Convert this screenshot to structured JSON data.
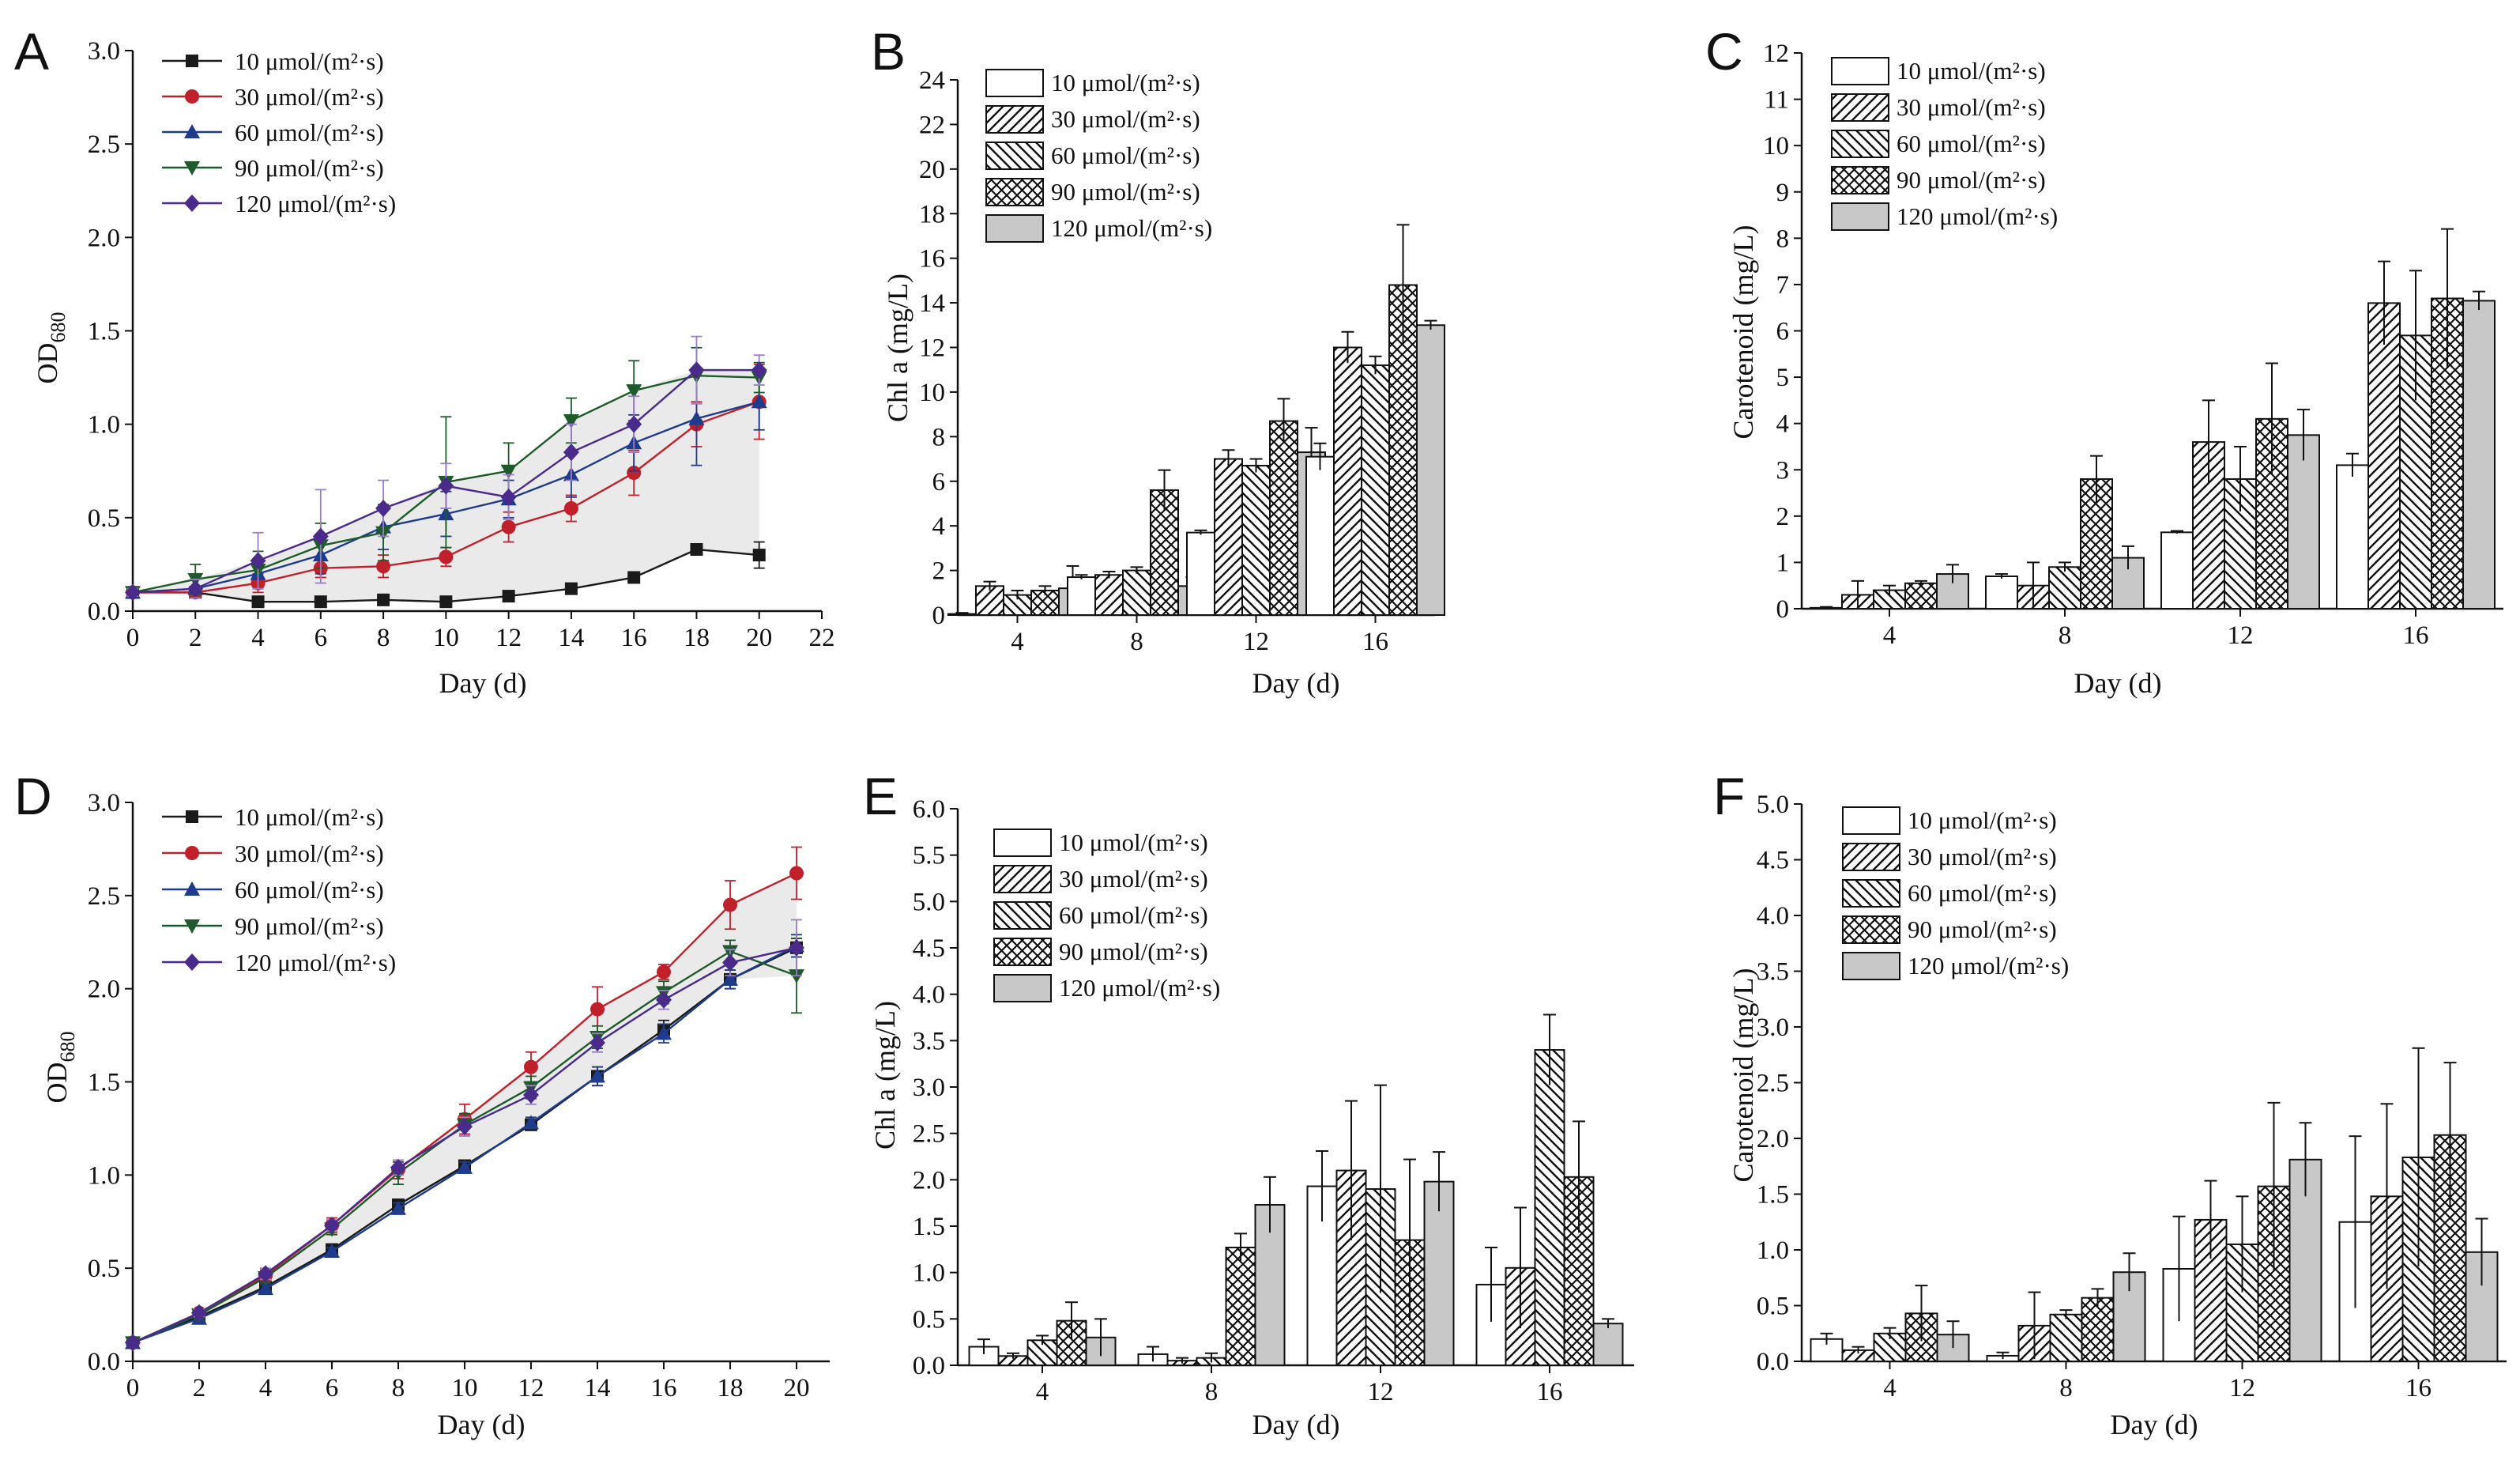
{
  "figure": {
    "legend_labels": [
      "10 μmol/(m²·s)",
      "30 μmol/(m²·s)",
      "60 μmol/(m²·s)",
      "90 μmol/(m²·s)",
      "120 μmol/(m²·s)"
    ],
    "line_colors": [
      "#1a1a1a",
      "#c0202a",
      "#1f3c8c",
      "#1e5a2a",
      "#4a2a8a"
    ],
    "error_bar_colors": [
      "#1a1a1a",
      "#c0202a",
      "#1f3c8c",
      "#1e5a2a",
      "#9a7cc8"
    ],
    "band_color": "#d8d8d8",
    "bar_fills": [
      "plain",
      "hatch-fwd",
      "hatch-back",
      "crosshatch",
      "gray"
    ]
  },
  "chart_data": [
    {
      "panel": "A",
      "type": "line",
      "xlabel": "Day (d)",
      "ylabel": "OD",
      "ylabel_sub": "680",
      "xlim": [
        0,
        22
      ],
      "ylim": [
        0,
        3.0
      ],
      "xticks": [
        "0",
        "2",
        "4",
        "6",
        "8",
        "10",
        "12",
        "14",
        "16",
        "18",
        "20",
        "22"
      ],
      "yticks": [
        "0.0",
        "0.5",
        "1.0",
        "1.5",
        "2.0",
        "2.5",
        "3.0"
      ],
      "x": [
        0,
        2,
        4,
        6,
        8,
        10,
        12,
        14,
        16,
        18,
        20
      ],
      "series": [
        {
          "name": "10 μmol/(m²·s)",
          "marker": "square",
          "values": [
            0.1,
            0.1,
            0.05,
            0.05,
            0.06,
            0.05,
            0.08,
            0.12,
            0.18,
            0.33,
            0.3
          ],
          "errors": [
            0.01,
            0.01,
            0.01,
            0.01,
            0.01,
            0.01,
            0.01,
            0.02,
            0.02,
            0.02,
            0.07
          ]
        },
        {
          "name": "30 μmol/(m²·s)",
          "marker": "circle",
          "values": [
            0.1,
            0.1,
            0.15,
            0.23,
            0.24,
            0.29,
            0.45,
            0.55,
            0.74,
            1.0,
            1.12
          ],
          "errors": [
            0.02,
            0.03,
            0.05,
            0.05,
            0.06,
            0.05,
            0.08,
            0.07,
            0.12,
            0.12,
            0.2
          ]
        },
        {
          "name": "60 μmol/(m²·s)",
          "marker": "triangle",
          "values": [
            0.1,
            0.12,
            0.2,
            0.3,
            0.45,
            0.52,
            0.6,
            0.73,
            0.9,
            1.03,
            1.12
          ],
          "errors": [
            0.02,
            0.05,
            0.08,
            0.1,
            0.12,
            0.12,
            0.1,
            0.12,
            0.15,
            0.25,
            0.15
          ]
        },
        {
          "name": "90 μmol/(m²·s)",
          "marker": "triangle-down",
          "values": [
            0.1,
            0.17,
            0.22,
            0.35,
            0.42,
            0.69,
            0.75,
            1.02,
            1.18,
            1.26,
            1.25
          ],
          "errors": [
            0.02,
            0.08,
            0.1,
            0.12,
            0.15,
            0.35,
            0.15,
            0.12,
            0.16,
            0.15,
            0.08
          ]
        },
        {
          "name": "120 μmol/(m²·s)",
          "marker": "diamond",
          "values": [
            0.1,
            0.12,
            0.27,
            0.4,
            0.55,
            0.67,
            0.61,
            0.85,
            1.0,
            1.29,
            1.29
          ],
          "errors": [
            0.02,
            0.05,
            0.15,
            0.25,
            0.15,
            0.12,
            0.12,
            0.15,
            0.15,
            0.18,
            0.08
          ]
        }
      ]
    },
    {
      "panel": "B",
      "type": "bar",
      "xlabel": "Day (d)",
      "ylabel": "Chl a (mg/L)",
      "ylim": [
        0,
        24
      ],
      "yticks": [
        "0",
        "2",
        "4",
        "6",
        "8",
        "10",
        "12",
        "14",
        "16",
        "18",
        "20",
        "22",
        "24"
      ],
      "categories": [
        "4",
        "8",
        "12",
        "16"
      ],
      "series": [
        {
          "name": "10 μmol/(m²·s)",
          "values": [
            0.05,
            1.7,
            3.7,
            7.1
          ],
          "errors": [
            0.05,
            0.1,
            0.1,
            0.6
          ]
        },
        {
          "name": "30 μmol/(m²·s)",
          "values": [
            1.3,
            1.8,
            7.0,
            12.0
          ],
          "errors": [
            0.2,
            0.15,
            0.4,
            0.7
          ]
        },
        {
          "name": "60 μmol/(m²·s)",
          "values": [
            0.9,
            2.0,
            6.7,
            11.2
          ],
          "errors": [
            0.2,
            0.15,
            0.3,
            0.4
          ]
        },
        {
          "name": "90 μmol/(m²·s)",
          "values": [
            1.1,
            5.6,
            8.7,
            14.8
          ],
          "errors": [
            0.2,
            0.9,
            1.0,
            2.7
          ]
        },
        {
          "name": "120 μmol/(m²·s)",
          "values": [
            1.2,
            1.3,
            7.3,
            13.0
          ],
          "errors": [
            1.0,
            0.4,
            1.1,
            0.2
          ]
        }
      ]
    },
    {
      "panel": "C",
      "type": "bar",
      "xlabel": "Day (d)",
      "ylabel": "Carotenoid  (mg/L)",
      "ylim": [
        0,
        12
      ],
      "yticks": [
        "0",
        "1",
        "2",
        "3",
        "4",
        "5",
        "6",
        "7",
        "8",
        "9",
        "10",
        "11",
        "12"
      ],
      "categories": [
        "4",
        "8",
        "12",
        "16"
      ],
      "series": [
        {
          "name": "10 μmol/(m²·s)",
          "values": [
            0.02,
            0.7,
            1.65,
            3.1
          ],
          "errors": [
            0.02,
            0.05,
            0.03,
            0.25
          ]
        },
        {
          "name": "30 μmol/(m²·s)",
          "values": [
            0.3,
            0.5,
            3.6,
            6.6
          ],
          "errors": [
            0.3,
            0.5,
            0.9,
            0.9
          ]
        },
        {
          "name": "60 μmol/(m²·s)",
          "values": [
            0.4,
            0.9,
            2.8,
            5.9
          ],
          "errors": [
            0.1,
            0.1,
            0.7,
            1.4
          ]
        },
        {
          "name": "90 μmol/(m²·s)",
          "values": [
            0.55,
            2.8,
            4.1,
            6.7
          ],
          "errors": [
            0.05,
            0.5,
            1.2,
            1.5
          ]
        },
        {
          "name": "120 μmol/(m²·s)",
          "values": [
            0.75,
            1.1,
            3.75,
            6.65
          ],
          "errors": [
            0.2,
            0.25,
            0.55,
            0.2
          ]
        }
      ]
    },
    {
      "panel": "D",
      "type": "line",
      "xlabel": "Day (d)",
      "ylabel": "OD",
      "ylabel_sub": "680",
      "xlim": [
        0,
        21
      ],
      "ylim": [
        0,
        3.0
      ],
      "xticks": [
        "0",
        "2",
        "4",
        "6",
        "8",
        "10",
        "12",
        "14",
        "16",
        "18",
        "20"
      ],
      "yticks": [
        "0.0",
        "0.5",
        "1.0",
        "1.5",
        "2.0",
        "2.5",
        "3.0"
      ],
      "x": [
        0,
        2,
        4,
        6,
        8,
        10,
        12,
        14,
        16,
        18,
        20
      ],
      "series": [
        {
          "name": "10 μmol/(m²·s)",
          "marker": "square",
          "values": [
            0.1,
            0.24,
            0.4,
            0.6,
            0.84,
            1.05,
            1.27,
            1.53,
            1.78,
            2.05,
            2.22
          ],
          "errors": [
            0.01,
            0.02,
            0.02,
            0.02,
            0.03,
            0.03,
            0.03,
            0.05,
            0.05,
            0.05,
            0.05
          ]
        },
        {
          "name": "30 μmol/(m²·s)",
          "marker": "circle",
          "values": [
            0.1,
            0.26,
            0.46,
            0.73,
            1.03,
            1.3,
            1.58,
            1.89,
            2.09,
            2.45,
            2.62
          ],
          "errors": [
            0.01,
            0.02,
            0.03,
            0.04,
            0.05,
            0.08,
            0.08,
            0.12,
            0.04,
            0.13,
            0.14
          ]
        },
        {
          "name": "60 μmol/(m²·s)",
          "marker": "triangle",
          "values": [
            0.1,
            0.23,
            0.39,
            0.59,
            0.82,
            1.04,
            1.28,
            1.53,
            1.76,
            2.05,
            2.23
          ],
          "errors": [
            0.01,
            0.02,
            0.02,
            0.02,
            0.03,
            0.03,
            0.03,
            0.05,
            0.05,
            0.05,
            0.06
          ]
        },
        {
          "name": "90 μmol/(m²·s)",
          "marker": "triangle-down",
          "values": [
            0.1,
            0.25,
            0.45,
            0.71,
            1.01,
            1.27,
            1.47,
            1.74,
            1.98,
            2.2,
            2.07
          ],
          "errors": [
            0.01,
            0.02,
            0.03,
            0.03,
            0.06,
            0.06,
            0.06,
            0.06,
            0.06,
            0.06,
            0.2
          ]
        },
        {
          "name": "120 μmol/(m²·s)",
          "marker": "diamond",
          "values": [
            0.1,
            0.26,
            0.47,
            0.73,
            1.04,
            1.26,
            1.43,
            1.71,
            1.94,
            2.14,
            2.22
          ],
          "errors": [
            0.01,
            0.02,
            0.03,
            0.03,
            0.04,
            0.05,
            0.05,
            0.05,
            0.05,
            0.07,
            0.15
          ]
        }
      ]
    },
    {
      "panel": "E",
      "type": "bar",
      "xlabel": "Day (d)",
      "ylabel": "Chl a  (mg/L)",
      "ylim": [
        0,
        6.0
      ],
      "yticks": [
        "0.0",
        "0.5",
        "1.0",
        "1.5",
        "2.0",
        "2.5",
        "3.0",
        "3.5",
        "4.0",
        "4.5",
        "5.0",
        "5.5",
        "6.0"
      ],
      "categories": [
        "4",
        "8",
        "12",
        "16"
      ],
      "series": [
        {
          "name": "10 μmol/(m²·s)",
          "values": [
            0.2,
            0.12,
            1.93,
            0.87
          ],
          "errors": [
            0.08,
            0.08,
            0.38,
            0.4
          ]
        },
        {
          "name": "30 μmol/(m²·s)",
          "values": [
            0.1,
            0.05,
            2.1,
            1.05
          ],
          "errors": [
            0.03,
            0.03,
            0.75,
            0.65
          ]
        },
        {
          "name": "60 μmol/(m²·s)",
          "values": [
            0.27,
            0.08,
            1.9,
            3.4
          ],
          "errors": [
            0.05,
            0.05,
            1.12,
            0.38
          ]
        },
        {
          "name": "90 μmol/(m²·s)",
          "values": [
            0.48,
            1.27,
            1.35,
            2.03
          ],
          "errors": [
            0.2,
            0.15,
            0.87,
            0.6
          ]
        },
        {
          "name": "120 μmol/(m²·s)",
          "values": [
            0.3,
            1.73,
            1.98,
            0.45
          ],
          "errors": [
            0.2,
            0.3,
            0.32,
            0.05
          ]
        }
      ]
    },
    {
      "panel": "F",
      "type": "bar",
      "xlabel": "Day (d)",
      "ylabel": "Carotenoid  (mg/L)",
      "ylim": [
        0,
        5.0
      ],
      "yticks": [
        "0.0",
        "0.5",
        "1.0",
        "1.5",
        "2.0",
        "2.5",
        "3.0",
        "3.5",
        "4.0",
        "4.5",
        "5.0"
      ],
      "categories": [
        "4",
        "8",
        "12",
        "16"
      ],
      "series": [
        {
          "name": "10 μmol/(m²·s)",
          "values": [
            0.2,
            0.05,
            0.83,
            1.25
          ],
          "errors": [
            0.05,
            0.03,
            0.47,
            0.77
          ]
        },
        {
          "name": "30 μmol/(m²·s)",
          "values": [
            0.1,
            0.32,
            1.27,
            1.48
          ],
          "errors": [
            0.03,
            0.3,
            0.35,
            0.83
          ]
        },
        {
          "name": "60 μmol/(m²·s)",
          "values": [
            0.25,
            0.42,
            1.05,
            1.83
          ],
          "errors": [
            0.05,
            0.04,
            0.43,
            0.98
          ]
        },
        {
          "name": "90 μmol/(m²·s)",
          "values": [
            0.43,
            0.57,
            1.57,
            2.03
          ],
          "errors": [
            0.25,
            0.08,
            0.75,
            0.65
          ]
        },
        {
          "name": "120 μmol/(m²·s)",
          "values": [
            0.24,
            0.8,
            1.81,
            0.98
          ],
          "errors": [
            0.12,
            0.17,
            0.33,
            0.3
          ]
        }
      ]
    }
  ]
}
